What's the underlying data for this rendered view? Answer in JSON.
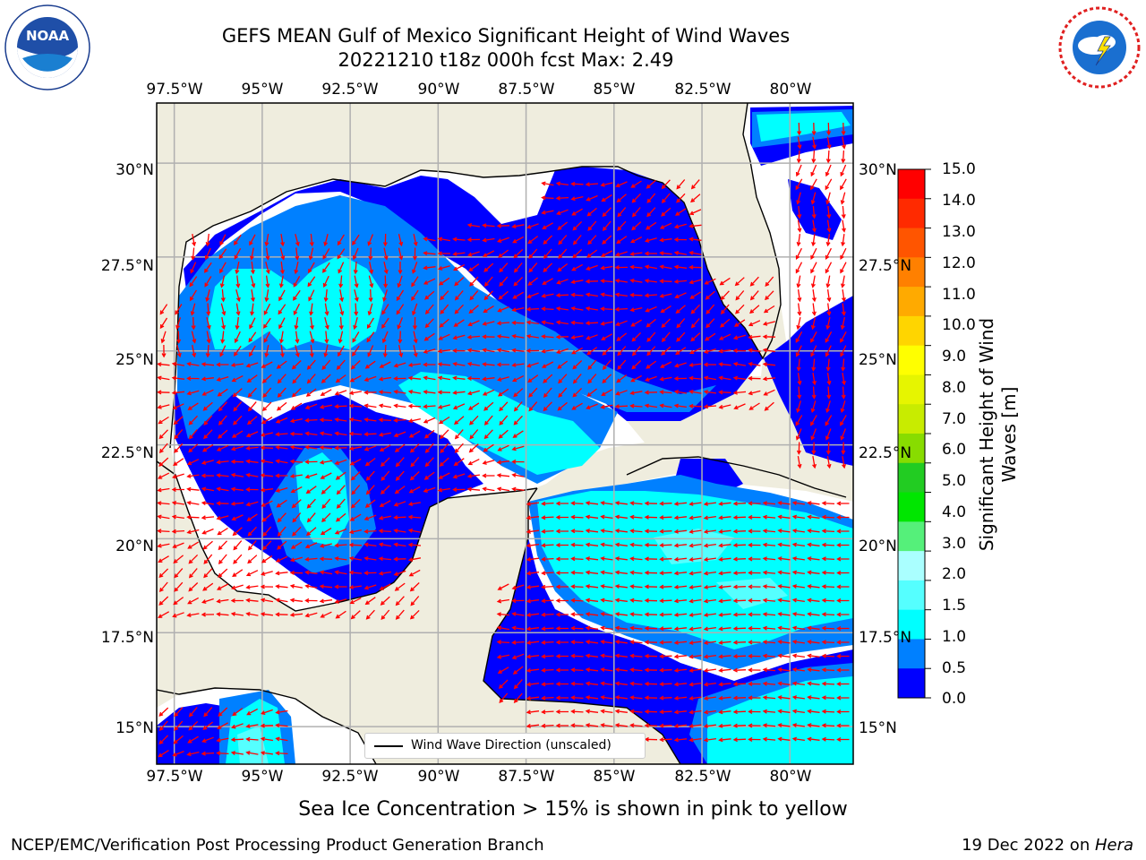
{
  "title": {
    "line1": "GEFS MEAN Gulf of Mexico Significant Height of Wind Waves",
    "line2": "20221210 t18z 000h fcst   Max: 2.49"
  },
  "map": {
    "lon_labels": [
      "97.5°W",
      "95°W",
      "92.5°W",
      "90°W",
      "87.5°W",
      "85°W",
      "82.5°W",
      "80°W"
    ],
    "lat_labels": [
      "30°N",
      "27.5°N",
      "25°N",
      "22.5°N",
      "20°N",
      "17.5°N",
      "15°N"
    ],
    "lon_range": [
      -98,
      -78.2
    ],
    "lat_range": [
      14,
      31.6
    ],
    "land_color": "#efedde",
    "grid_color": "#b0b0b0",
    "arrow_color": "#ff0000"
  },
  "colorbar": {
    "ticks": [
      "15.0",
      "14.0",
      "13.0",
      "12.0",
      "11.0",
      "10.0",
      "9.0",
      "8.0",
      "7.0",
      "6.0",
      "5.0",
      "4.0",
      "3.0",
      "2.0",
      "1.5",
      "1.0",
      "0.5",
      "0.0"
    ],
    "title": "Significant Height of Wind Waves [m]",
    "colors": [
      "#ff0000",
      "#ff2a00",
      "#ff5500",
      "#ff8000",
      "#ffaa00",
      "#ffd500",
      "#ffff00",
      "#e6f500",
      "#c8ec00",
      "#88dc00",
      "#22cc22",
      "#00e600",
      "#55f07a",
      "#aaffff",
      "#55ffff",
      "#00ffff",
      "#0080ff",
      "#0000ff"
    ]
  },
  "legend": {
    "label": "Wind Wave Direction (unscaled)"
  },
  "note": "Sea Ice Concentration > 15% is shown in pink to yellow",
  "footer": {
    "left": "NCEP/EMC/Verification Post Processing Product Generation Branch",
    "right_date": "19 Dec 2022 on ",
    "right_host": "Hera"
  },
  "logos": {
    "left": "noaa-logo",
    "right": "national-weather-service-logo"
  }
}
